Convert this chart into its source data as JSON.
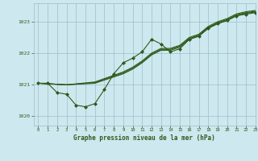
{
  "title": "Graphe pression niveau de la mer (hPa)",
  "xlim": [
    -0.5,
    23
  ],
  "ylim": [
    1019.7,
    1023.6
  ],
  "yticks": [
    1020,
    1021,
    1022,
    1023
  ],
  "xticks": [
    0,
    1,
    2,
    3,
    4,
    5,
    6,
    7,
    8,
    9,
    10,
    11,
    12,
    13,
    14,
    15,
    16,
    17,
    18,
    19,
    20,
    21,
    22,
    23
  ],
  "bg_color": "#cee8ef",
  "grid_color": "#9bbfc7",
  "line_color": "#2d5a1b",
  "marker_color": "#2d5a1b",
  "series_dip": [
    [
      0,
      1021.05
    ],
    [
      1,
      1021.05
    ],
    [
      2,
      1020.75
    ],
    [
      3,
      1020.7
    ],
    [
      4,
      1020.35
    ],
    [
      5,
      1020.3
    ],
    [
      6,
      1020.4
    ],
    [
      7,
      1020.85
    ],
    [
      8,
      1021.35
    ],
    [
      9,
      1021.7
    ],
    [
      10,
      1021.85
    ],
    [
      11,
      1022.05
    ],
    [
      12,
      1022.45
    ],
    [
      13,
      1022.3
    ],
    [
      14,
      1022.05
    ],
    [
      15,
      1022.15
    ],
    [
      16,
      1022.45
    ],
    [
      17,
      1022.55
    ],
    [
      18,
      1022.8
    ],
    [
      19,
      1022.95
    ],
    [
      20,
      1023.05
    ],
    [
      21,
      1023.2
    ],
    [
      22,
      1023.25
    ],
    [
      23,
      1023.3
    ]
  ],
  "series_straight1": [
    [
      0,
      1021.05
    ],
    [
      3,
      1021.0
    ],
    [
      6,
      1021.05
    ],
    [
      9,
      1021.35
    ],
    [
      10,
      1021.5
    ],
    [
      11,
      1021.7
    ],
    [
      12,
      1021.95
    ],
    [
      13,
      1022.1
    ],
    [
      14,
      1022.1
    ],
    [
      15,
      1022.2
    ],
    [
      16,
      1022.45
    ],
    [
      17,
      1022.55
    ],
    [
      18,
      1022.8
    ],
    [
      19,
      1022.95
    ],
    [
      20,
      1023.05
    ],
    [
      21,
      1023.2
    ],
    [
      22,
      1023.28
    ],
    [
      23,
      1023.32
    ]
  ],
  "series_straight2": [
    [
      0,
      1021.05
    ],
    [
      3,
      1021.0
    ],
    [
      6,
      1021.07
    ],
    [
      9,
      1021.38
    ],
    [
      10,
      1021.53
    ],
    [
      11,
      1021.73
    ],
    [
      12,
      1021.98
    ],
    [
      13,
      1022.13
    ],
    [
      14,
      1022.13
    ],
    [
      15,
      1022.23
    ],
    [
      16,
      1022.48
    ],
    [
      17,
      1022.58
    ],
    [
      18,
      1022.83
    ],
    [
      19,
      1022.98
    ],
    [
      20,
      1023.08
    ],
    [
      21,
      1023.23
    ],
    [
      22,
      1023.3
    ],
    [
      23,
      1023.34
    ]
  ],
  "series_straight3": [
    [
      0,
      1021.05
    ],
    [
      3,
      1021.0
    ],
    [
      6,
      1021.09
    ],
    [
      9,
      1021.41
    ],
    [
      10,
      1021.56
    ],
    [
      11,
      1021.76
    ],
    [
      12,
      1022.01
    ],
    [
      13,
      1022.16
    ],
    [
      14,
      1022.16
    ],
    [
      15,
      1022.26
    ],
    [
      16,
      1022.51
    ],
    [
      17,
      1022.61
    ],
    [
      18,
      1022.86
    ],
    [
      19,
      1023.01
    ],
    [
      20,
      1023.11
    ],
    [
      21,
      1023.26
    ],
    [
      22,
      1023.33
    ],
    [
      23,
      1023.37
    ]
  ]
}
